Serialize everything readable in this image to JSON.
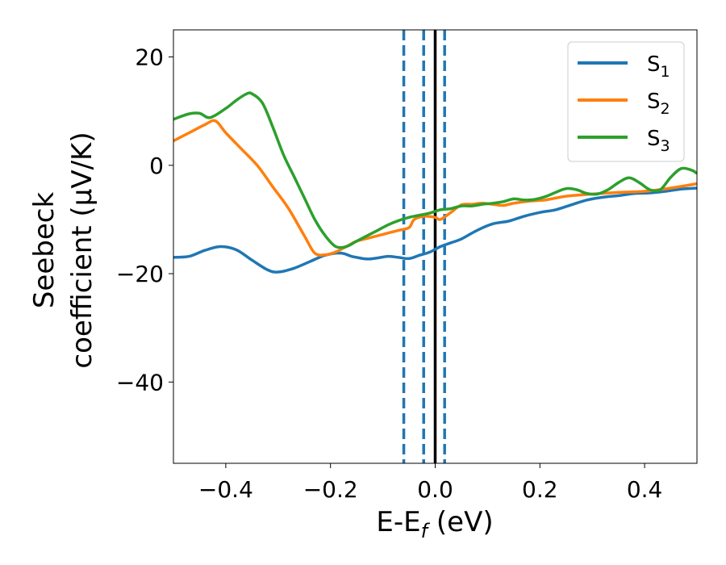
{
  "chart_data": {
    "type": "line",
    "xlabel": "E-E",
    "xlabel_subscript": "f",
    "xlabel_unit": "(eV)",
    "ylabel_line1": "Seebeck",
    "ylabel_line2": "coefficient  (μV/K)",
    "xlim": [
      -0.5,
      0.5
    ],
    "ylim": [
      -55,
      25
    ],
    "xticks": [
      -0.4,
      -0.2,
      0.0,
      0.2,
      0.4
    ],
    "xtick_labels": [
      "−0.4",
      "−0.2",
      "0.0",
      "0.2",
      "0.4"
    ],
    "yticks": [
      20,
      0,
      -20,
      -40
    ],
    "ytick_labels": [
      "20",
      "0",
      "−20",
      "−40"
    ],
    "grid": false,
    "legend_position": "top-right",
    "vertical_lines": [
      {
        "x": -0.06,
        "style": "dashed",
        "color": "#1f77b4"
      },
      {
        "x": -0.022,
        "style": "dashed",
        "color": "#1f77b4"
      },
      {
        "x": 0.0,
        "style": "solid",
        "color": "#000000"
      },
      {
        "x": 0.018,
        "style": "dashed",
        "color": "#1f77b4"
      }
    ],
    "series": [
      {
        "name": "S",
        "subscript": "1",
        "color": "#1f77b4",
        "x": [
          -0.5,
          -0.47,
          -0.44,
          -0.41,
          -0.38,
          -0.35,
          -0.32,
          -0.3,
          -0.27,
          -0.24,
          -0.21,
          -0.18,
          -0.16,
          -0.15,
          -0.13,
          -0.11,
          -0.09,
          -0.07,
          -0.05,
          -0.03,
          -0.01,
          0.01,
          0.03,
          0.05,
          0.08,
          0.11,
          0.14,
          0.17,
          0.2,
          0.23,
          0.26,
          0.29,
          0.32,
          0.35,
          0.38,
          0.41,
          0.44,
          0.47,
          0.5
        ],
        "y": [
          -17,
          -16.8,
          -15.7,
          -15,
          -15.6,
          -17.5,
          -19.3,
          -19.7,
          -19,
          -17.8,
          -16.6,
          -16.2,
          -16.8,
          -17,
          -17.3,
          -17.1,
          -16.8,
          -17,
          -17.2,
          -16.6,
          -16,
          -15,
          -14.3,
          -13.6,
          -12,
          -10.8,
          -10.3,
          -9.4,
          -8.7,
          -8.2,
          -7.3,
          -6.4,
          -5.9,
          -5.6,
          -5.2,
          -5.1,
          -4.8,
          -4.4,
          -4.2
        ]
      },
      {
        "name": "S",
        "subscript": "2",
        "color": "#ff7f0e",
        "x": [
          -0.5,
          -0.47,
          -0.44,
          -0.42,
          -0.4,
          -0.37,
          -0.34,
          -0.31,
          -0.28,
          -0.25,
          -0.23,
          -0.21,
          -0.19,
          -0.17,
          -0.15,
          -0.13,
          -0.11,
          -0.09,
          -0.07,
          -0.05,
          -0.04,
          -0.02,
          0.0,
          0.01,
          0.03,
          0.05,
          0.07,
          0.09,
          0.11,
          0.13,
          0.15,
          0.18,
          0.21,
          0.25,
          0.3,
          0.35,
          0.4,
          0.45,
          0.5
        ],
        "y": [
          4.5,
          6,
          7.5,
          8.2,
          6,
          3,
          0,
          -4,
          -8,
          -13,
          -16.2,
          -16.5,
          -16,
          -15,
          -14,
          -13.5,
          -13,
          -12.5,
          -12,
          -11.5,
          -10,
          -9.4,
          -9.6,
          -10,
          -8.7,
          -7.3,
          -7.2,
          -7,
          -7.2,
          -7.4,
          -7,
          -6.6,
          -6.4,
          -5.7,
          -5.3,
          -5,
          -4.8,
          -4.2,
          -3.4
        ]
      },
      {
        "name": "S",
        "subscript": "3",
        "color": "#2ca02c",
        "x": [
          -0.5,
          -0.47,
          -0.45,
          -0.43,
          -0.4,
          -0.38,
          -0.36,
          -0.35,
          -0.33,
          -0.31,
          -0.29,
          -0.27,
          -0.25,
          -0.23,
          -0.21,
          -0.19,
          -0.17,
          -0.15,
          -0.13,
          -0.11,
          -0.09,
          -0.07,
          -0.05,
          -0.03,
          -0.01,
          0.01,
          0.03,
          0.05,
          0.07,
          0.09,
          0.11,
          0.13,
          0.15,
          0.17,
          0.19,
          0.21,
          0.23,
          0.25,
          0.27,
          0.29,
          0.31,
          0.33,
          0.35,
          0.37,
          0.39,
          0.41,
          0.43,
          0.45,
          0.47,
          0.49,
          0.5
        ],
        "y": [
          8.5,
          9.5,
          9.6,
          8.8,
          10.5,
          12,
          13.2,
          13.2,
          11.5,
          7,
          2,
          -2,
          -6,
          -10,
          -13,
          -15,
          -15,
          -14,
          -13,
          -12,
          -11,
          -10.2,
          -9.6,
          -9.2,
          -8.8,
          -8.2,
          -8,
          -7.5,
          -7.5,
          -7.2,
          -7,
          -6.7,
          -6.2,
          -6.4,
          -6.3,
          -5.8,
          -5,
          -4.3,
          -4.5,
          -5.2,
          -5.3,
          -4.5,
          -3.2,
          -2.3,
          -3.2,
          -4.5,
          -4.5,
          -2.2,
          -0.6,
          -0.9,
          -1.5
        ]
      }
    ]
  }
}
